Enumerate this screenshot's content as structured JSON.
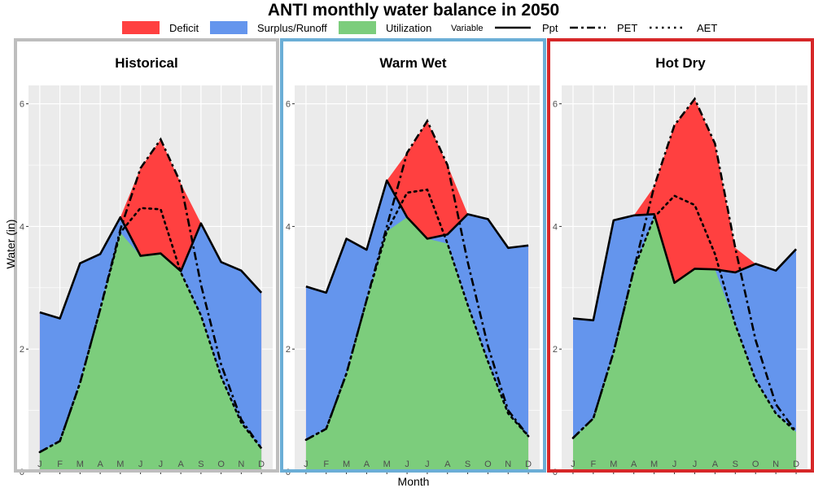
{
  "title": "ANTI monthly water balance in 2050",
  "legend": {
    "fill_items": [
      {
        "label": "Deficit",
        "color": "#ff4040"
      },
      {
        "label": "Surplus/Runoff",
        "color": "#6495ed"
      },
      {
        "label": "Utilization",
        "color": "#7ccd7c"
      }
    ],
    "variable_title": "Variable",
    "line_items": [
      {
        "label": "Ppt",
        "style": "solid"
      },
      {
        "label": "PET",
        "style": "dashdot"
      },
      {
        "label": "AET",
        "style": "dotted"
      }
    ]
  },
  "xlabel": "Month",
  "ylabel": "Water (in)",
  "chart_data": {
    "type": "area",
    "categories": [
      "J",
      "F",
      "M",
      "A",
      "M",
      "J",
      "J",
      "A",
      "S",
      "O",
      "N",
      "D"
    ],
    "ylim": [
      0,
      6.3
    ],
    "yticks": [
      0,
      2,
      4,
      6
    ],
    "grid": true,
    "legend_position": "top",
    "colors": {
      "deficit": "#ff4040",
      "surplus": "#6495ed",
      "utilization": "#7ccd7c"
    },
    "panels": [
      {
        "name": "Historical",
        "border_color": "#bebebe",
        "ppt": [
          2.6,
          2.5,
          3.4,
          3.55,
          4.15,
          3.52,
          3.56,
          3.27,
          4.05,
          3.42,
          3.28,
          2.92
        ],
        "pet": [
          0.32,
          0.5,
          1.45,
          2.65,
          3.95,
          4.95,
          5.42,
          4.7,
          3.05,
          1.75,
          0.85,
          0.38
        ],
        "aet": [
          0.32,
          0.5,
          1.45,
          2.65,
          3.9,
          4.3,
          4.28,
          3.25,
          2.55,
          1.55,
          0.8,
          0.38
        ]
      },
      {
        "name": "Warm Wet",
        "border_color": "#6baed6",
        "ppt": [
          3.02,
          2.92,
          3.8,
          3.62,
          4.75,
          4.15,
          3.8,
          3.87,
          4.2,
          4.12,
          3.65,
          3.69
        ],
        "pet": [
          0.52,
          0.7,
          1.6,
          2.8,
          4.0,
          5.2,
          5.72,
          5.0,
          3.42,
          2.05,
          1.0,
          0.58
        ],
        "aet": [
          0.52,
          0.7,
          1.6,
          2.8,
          3.92,
          4.55,
          4.6,
          3.72,
          2.72,
          1.8,
          0.95,
          0.58
        ]
      },
      {
        "name": "Hot Dry",
        "border_color": "#d62728",
        "ppt": [
          2.5,
          2.47,
          4.1,
          4.18,
          4.2,
          3.08,
          3.31,
          3.3,
          3.25,
          3.39,
          3.28,
          3.63
        ],
        "pet": [
          0.55,
          0.87,
          1.95,
          3.3,
          4.65,
          5.65,
          6.08,
          5.35,
          3.65,
          2.15,
          1.1,
          0.65
        ],
        "aet": [
          0.55,
          0.87,
          1.95,
          3.3,
          4.15,
          4.5,
          4.35,
          3.55,
          2.4,
          1.5,
          0.95,
          0.65
        ]
      }
    ]
  }
}
